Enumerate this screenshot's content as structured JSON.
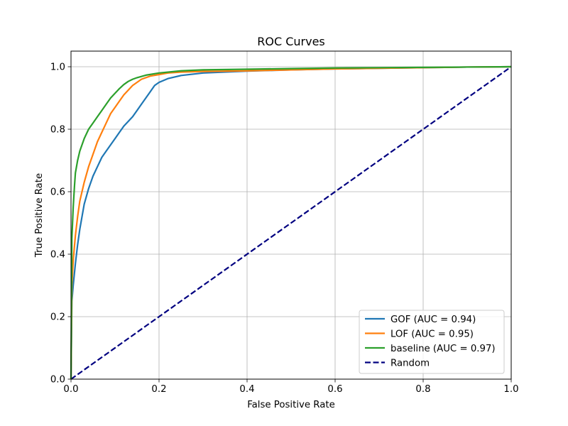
{
  "chart_data": {
    "type": "line",
    "title": "ROC Curves",
    "xlabel": "False Positive Rate",
    "ylabel": "True Positive Rate",
    "xlim": [
      0.0,
      1.0
    ],
    "ylim": [
      0.0,
      1.05
    ],
    "xticks": [
      "0.0",
      "0.2",
      "0.4",
      "0.6",
      "0.8",
      "1.0"
    ],
    "yticks": [
      "0.0",
      "0.2",
      "0.4",
      "0.6",
      "0.8",
      "1.0"
    ],
    "grid": true,
    "legend_position": "lower-right",
    "series": [
      {
        "name": "GOF (AUC = 0.94)",
        "color": "#1f77b4",
        "style": "solid",
        "x": [
          0.0,
          0.002,
          0.005,
          0.01,
          0.015,
          0.02,
          0.03,
          0.04,
          0.05,
          0.06,
          0.07,
          0.08,
          0.09,
          0.1,
          0.11,
          0.12,
          0.13,
          0.14,
          0.15,
          0.16,
          0.17,
          0.18,
          0.19,
          0.2,
          0.22,
          0.25,
          0.3,
          0.4,
          0.5,
          0.6,
          0.7,
          0.8,
          0.9,
          1.0
        ],
        "y": [
          0.0,
          0.25,
          0.3,
          0.37,
          0.43,
          0.48,
          0.56,
          0.61,
          0.65,
          0.68,
          0.71,
          0.73,
          0.75,
          0.77,
          0.79,
          0.81,
          0.825,
          0.84,
          0.86,
          0.88,
          0.9,
          0.92,
          0.94,
          0.95,
          0.962,
          0.972,
          0.98,
          0.986,
          0.99,
          0.993,
          0.995,
          0.997,
          0.999,
          1.0
        ]
      },
      {
        "name": "LOF (AUC = 0.95)",
        "color": "#ff7f0e",
        "style": "solid",
        "x": [
          0.0,
          0.002,
          0.005,
          0.01,
          0.015,
          0.02,
          0.03,
          0.04,
          0.05,
          0.06,
          0.07,
          0.08,
          0.09,
          0.1,
          0.11,
          0.12,
          0.13,
          0.14,
          0.15,
          0.16,
          0.18,
          0.2,
          0.22,
          0.25,
          0.3,
          0.4,
          0.5,
          0.6,
          0.7,
          0.8,
          0.9,
          1.0
        ],
        "y": [
          0.0,
          0.3,
          0.38,
          0.46,
          0.52,
          0.57,
          0.63,
          0.68,
          0.72,
          0.76,
          0.79,
          0.82,
          0.85,
          0.87,
          0.89,
          0.91,
          0.925,
          0.94,
          0.95,
          0.96,
          0.97,
          0.975,
          0.98,
          0.983,
          0.985,
          0.987,
          0.99,
          0.993,
          0.995,
          0.997,
          0.999,
          1.0
        ]
      },
      {
        "name": "baseline (AUC = 0.97)",
        "color": "#2ca02c",
        "style": "solid",
        "x": [
          0.0,
          0.002,
          0.005,
          0.008,
          0.01,
          0.015,
          0.02,
          0.03,
          0.04,
          0.05,
          0.06,
          0.07,
          0.08,
          0.09,
          0.1,
          0.11,
          0.12,
          0.13,
          0.14,
          0.15,
          0.17,
          0.2,
          0.25,
          0.3,
          0.4,
          0.5,
          0.6,
          0.7,
          0.8,
          0.9,
          1.0
        ],
        "y": [
          0.0,
          0.45,
          0.55,
          0.62,
          0.66,
          0.7,
          0.73,
          0.77,
          0.8,
          0.82,
          0.84,
          0.86,
          0.88,
          0.9,
          0.915,
          0.93,
          0.943,
          0.953,
          0.96,
          0.965,
          0.973,
          0.98,
          0.987,
          0.99,
          0.992,
          0.994,
          0.996,
          0.997,
          0.998,
          0.999,
          1.0
        ]
      },
      {
        "name": "Random",
        "color": "#000080",
        "style": "dashed",
        "x": [
          0.0,
          1.0
        ],
        "y": [
          0.0,
          1.0
        ]
      }
    ]
  }
}
